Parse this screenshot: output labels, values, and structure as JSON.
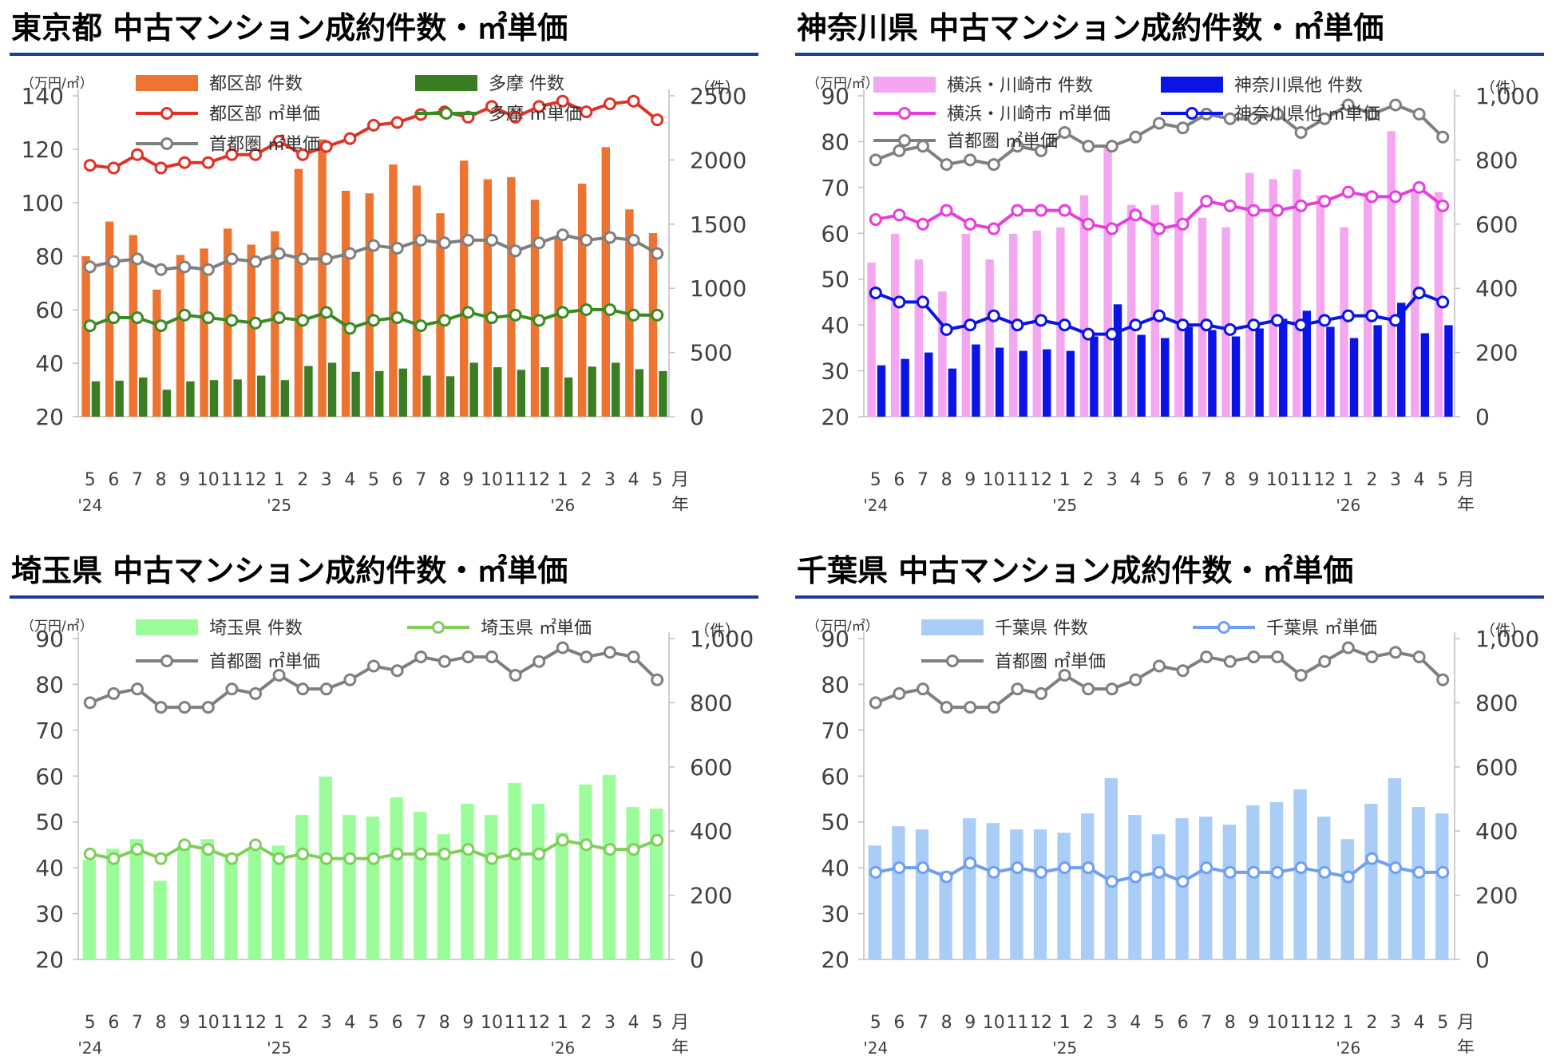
{
  "x_axis": {
    "month_labels": [
      "5",
      "6",
      "7",
      "8",
      "9",
      "10",
      "11",
      "12",
      "1",
      "2",
      "3",
      "4",
      "5",
      "6",
      "7",
      "8",
      "9",
      "10",
      "11",
      "12",
      "1",
      "2",
      "3",
      "4",
      "5"
    ],
    "year_labels": [
      {
        "index": 0,
        "label": "'24"
      },
      {
        "index": 8,
        "label": "'25"
      },
      {
        "index": 20,
        "label": "'26"
      }
    ],
    "month_unit": "月",
    "year_unit": "年"
  },
  "panels": [
    {
      "title": "東京都 中古マンション成約件数・㎡単価",
      "left_unit": "（万円/㎡）",
      "right_unit": "（件）",
      "legend": [
        {
          "label": "都区部 件数",
          "kind": "bar",
          "color": "#ed7430"
        },
        {
          "label": "多摩 件数",
          "kind": "bar",
          "color": "#3a7d22"
        },
        {
          "label": "都区部 ㎡単価",
          "kind": "line",
          "color": "#e03127"
        },
        {
          "label": "多摩 ㎡単価",
          "kind": "line",
          "color": "#3a8b22"
        },
        {
          "label": "首都圏 ㎡単価",
          "kind": "line",
          "color": "#7f7f7f"
        }
      ]
    },
    {
      "title": "神奈川県 中古マンション成約件数・㎡単価",
      "left_unit": "（万円/㎡）",
      "right_unit": "（件）",
      "legend": [
        {
          "label": "横浜・川崎市 件数",
          "kind": "bar",
          "color": "#f4a6f0"
        },
        {
          "label": "神奈川県他 件数",
          "kind": "bar",
          "color": "#0a14e6"
        },
        {
          "label": "横浜・川崎市 ㎡単価",
          "kind": "line",
          "color": "#e83ce0"
        },
        {
          "label": "神奈川県他 ㎡単価",
          "kind": "line",
          "color": "#0a14e6"
        },
        {
          "label": "首都圏 ㎡単価",
          "kind": "line",
          "color": "#7f7f7f"
        }
      ]
    },
    {
      "title": "埼玉県 中古マンション成約件数・㎡単価",
      "left_unit": "（万円/㎡）",
      "right_unit": "（件）",
      "legend": [
        {
          "label": "埼玉県 件数",
          "kind": "bar",
          "color": "#9afd9a"
        },
        {
          "label": "埼玉県 ㎡単価",
          "kind": "line",
          "color": "#7ecf5a"
        },
        {
          "label": "首都圏 ㎡単価",
          "kind": "line",
          "color": "#7f7f7f"
        }
      ]
    },
    {
      "title": "千葉県 中古マンション成約件数・㎡単価",
      "left_unit": "（万円/㎡）",
      "right_unit": "（件）",
      "legend": [
        {
          "label": "千葉県 件数",
          "kind": "bar",
          "color": "#a9cdf6"
        },
        {
          "label": "千葉県 ㎡単価",
          "kind": "line",
          "color": "#6f9ff0"
        },
        {
          "label": "首都圏 ㎡単価",
          "kind": "line",
          "color": "#7f7f7f"
        }
      ]
    }
  ],
  "chart_data": [
    {
      "type": "bar+line",
      "title": "東京都 中古マンション成約件数・㎡単価",
      "ylabel_left": "（万円/㎡）",
      "ylabel_right": "（件）",
      "ylim_left": [
        20,
        140
      ],
      "yticks_left": [
        "20",
        "40",
        "60",
        "80",
        "100",
        "120",
        "140"
      ],
      "ylim_right": [
        0,
        2500
      ],
      "yticks_right": [
        "0",
        "500",
        "1000",
        "1500",
        "2000",
        "2500"
      ],
      "bar_series": [
        {
          "name": "都区部 件数",
          "color": "#ed7430",
          "values": [
            1250,
            1520,
            1415,
            990,
            1260,
            1310,
            1465,
            1340,
            1445,
            1930,
            2160,
            1760,
            1740,
            1965,
            1800,
            1585,
            1995,
            1850,
            1865,
            1690,
            1390,
            1815,
            2100,
            1615,
            1430
          ]
        },
        {
          "name": "多摩 件数",
          "color": "#3a7d22",
          "values": [
            275,
            280,
            305,
            210,
            275,
            285,
            290,
            320,
            285,
            395,
            420,
            350,
            355,
            375,
            320,
            315,
            420,
            385,
            365,
            385,
            305,
            390,
            420,
            370,
            355
          ]
        }
      ],
      "line_series": [
        {
          "name": "都区部 ㎡単価",
          "color": "#e03127",
          "values": [
            114,
            113,
            118,
            113,
            115,
            115,
            118,
            118,
            123,
            118,
            121,
            124,
            129,
            130,
            133,
            134,
            132,
            136,
            132,
            136,
            138,
            134,
            137,
            138,
            131
          ]
        },
        {
          "name": "多摩 ㎡単価",
          "color": "#3a8b22",
          "values": [
            54,
            57,
            57,
            54,
            58,
            57,
            56,
            55,
            57,
            56,
            59,
            53,
            56,
            57,
            54,
            56,
            59,
            57,
            58,
            56,
            59,
            60,
            60,
            58,
            58
          ]
        },
        {
          "name": "首都圏 ㎡単価",
          "color": "#7f7f7f",
          "values": [
            76,
            78,
            79,
            75,
            76,
            75,
            79,
            78,
            81,
            79,
            79,
            81,
            84,
            83,
            86,
            85,
            86,
            86,
            82,
            85,
            88,
            86,
            87,
            86,
            81
          ]
        }
      ]
    },
    {
      "type": "bar+line",
      "title": "神奈川県 中古マンション成約件数・㎡単価",
      "ylabel_left": "（万円/㎡）",
      "ylabel_right": "（件）",
      "ylim_left": [
        20,
        90
      ],
      "yticks_left": [
        "20",
        "30",
        "40",
        "50",
        "60",
        "70",
        "80",
        "90"
      ],
      "ylim_right": [
        0,
        1000
      ],
      "yticks_right": [
        "0",
        "200",
        "400",
        "600",
        "800",
        "1,000"
      ],
      "bar_series": [
        {
          "name": "横浜・川崎市 件数",
          "color": "#f4a6f0",
          "values": [
            480,
            570,
            490,
            390,
            570,
            490,
            570,
            580,
            590,
            690,
            840,
            660,
            660,
            700,
            620,
            590,
            760,
            740,
            770,
            690,
            590,
            700,
            890,
            700,
            700
          ]
        },
        {
          "name": "神奈川県他 件数",
          "color": "#0a14e6",
          "values": [
            160,
            180,
            200,
            150,
            225,
            215,
            205,
            210,
            205,
            250,
            350,
            255,
            245,
            280,
            270,
            250,
            275,
            305,
            330,
            280,
            245,
            285,
            355,
            260,
            285
          ]
        }
      ],
      "line_series": [
        {
          "name": "横浜・川崎市 ㎡単価",
          "color": "#e83ce0",
          "values": [
            63,
            64,
            62,
            65,
            62,
            61,
            65,
            65,
            65,
            62,
            61,
            64,
            61,
            62,
            67,
            66,
            65,
            65,
            66,
            67,
            69,
            68,
            68,
            70,
            66
          ]
        },
        {
          "name": "神奈川県他 ㎡単価",
          "color": "#0a14e6",
          "values": [
            47,
            45,
            45,
            39,
            40,
            42,
            40,
            41,
            40,
            38,
            38,
            40,
            42,
            40,
            40,
            39,
            40,
            41,
            40,
            41,
            42,
            42,
            41,
            47,
            45
          ]
        },
        {
          "name": "首都圏 ㎡単価",
          "color": "#7f7f7f",
          "values": [
            76,
            78,
            79,
            75,
            76,
            75,
            79,
            78,
            82,
            79,
            79,
            81,
            84,
            83,
            86,
            85,
            85,
            86,
            82,
            85,
            88,
            86,
            88,
            86,
            81
          ]
        }
      ]
    },
    {
      "type": "bar+line",
      "title": "埼玉県 中古マンション成約件数・㎡単価",
      "ylabel_left": "（万円/㎡）",
      "ylabel_right": "（件）",
      "ylim_left": [
        20,
        90
      ],
      "yticks_left": [
        "20",
        "30",
        "40",
        "50",
        "60",
        "70",
        "80",
        "90"
      ],
      "ylim_right": [
        0,
        1000
      ],
      "yticks_right": [
        "0",
        "200",
        "400",
        "600",
        "800",
        "1,000"
      ],
      "bar_series": [
        {
          "name": "埼玉県 件数",
          "color": "#9afd9a",
          "values": [
            310,
            345,
            375,
            245,
            355,
            375,
            330,
            340,
            355,
            450,
            570,
            450,
            445,
            505,
            460,
            390,
            485,
            450,
            550,
            485,
            395,
            545,
            575,
            475,
            470
          ]
        }
      ],
      "line_series": [
        {
          "name": "埼玉県 ㎡単価",
          "color": "#7ecf5a",
          "values": [
            43,
            42,
            44,
            42,
            45,
            44,
            42,
            45,
            42,
            43,
            42,
            42,
            42,
            43,
            43,
            43,
            44,
            42,
            43,
            43,
            46,
            45,
            44,
            44,
            46
          ]
        },
        {
          "name": "首都圏 ㎡単価",
          "color": "#7f7f7f",
          "values": [
            76,
            78,
            79,
            75,
            75,
            75,
            79,
            78,
            82,
            79,
            79,
            81,
            84,
            83,
            86,
            85,
            86,
            86,
            82,
            85,
            88,
            86,
            87,
            86,
            81
          ]
        }
      ]
    },
    {
      "type": "bar+line",
      "title": "千葉県 中古マンション成約件数・㎡単価",
      "ylabel_left": "（万円/㎡）",
      "ylabel_right": "（件）",
      "ylim_left": [
        20,
        90
      ],
      "yticks_left": [
        "20",
        "30",
        "40",
        "50",
        "60",
        "70",
        "80",
        "90"
      ],
      "ylim_right": [
        0,
        1000
      ],
      "yticks_right": [
        "0",
        "200",
        "400",
        "600",
        "800",
        "1,000"
      ],
      "bar_series": [
        {
          "name": "千葉県 件数",
          "color": "#a9cdf6",
          "values": [
            355,
            415,
            405,
            275,
            440,
            425,
            405,
            405,
            395,
            455,
            565,
            450,
            390,
            440,
            445,
            420,
            480,
            490,
            530,
            445,
            375,
            485,
            565,
            475,
            455
          ]
        }
      ],
      "line_series": [
        {
          "name": "千葉県 ㎡単価",
          "color": "#6f9ff0",
          "values": [
            39,
            40,
            40,
            38,
            41,
            39,
            40,
            39,
            40,
            40,
            37,
            38,
            39,
            37,
            40,
            39,
            39,
            39,
            40,
            39,
            38,
            42,
            40,
            39,
            39
          ]
        },
        {
          "name": "首都圏 ㎡単価",
          "color": "#7f7f7f",
          "values": [
            76,
            78,
            79,
            75,
            75,
            75,
            79,
            78,
            82,
            79,
            79,
            81,
            84,
            83,
            86,
            85,
            86,
            86,
            82,
            85,
            88,
            86,
            87,
            86,
            81
          ]
        }
      ]
    }
  ]
}
